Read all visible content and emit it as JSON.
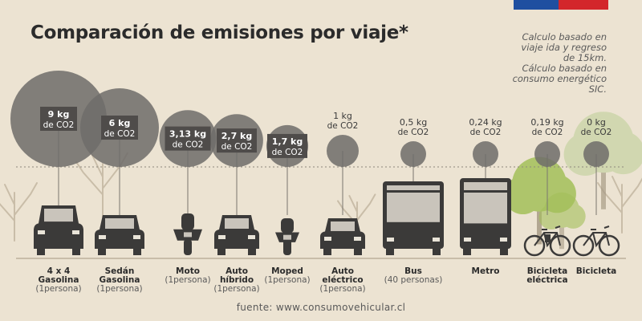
{
  "header": {
    "title": "Comparación de emisiones por viaje*",
    "note_lines": [
      "Calculo basado en",
      "viaje ida y regreso",
      "de 15km.",
      "Cálculo basado en",
      "consumo energético",
      "SIC."
    ]
  },
  "footer": {
    "source": "fuente: www.consumovehicular.cl"
  },
  "colors": {
    "background": "#ece3d2",
    "bubble": "#6f6c6a",
    "label_box": "#4f4c4a",
    "text": "#2b2b2b",
    "tree_green": "#a4c05a",
    "flag_blue": "#1f4fa0",
    "flag_red": "#d3262b"
  },
  "chart_data": {
    "type": "bubble",
    "unit": "kg de CO2",
    "categories": [
      {
        "name": "4 x 4\nGasolina",
        "sub": "(1persona)",
        "value": 9,
        "label": "9 kg",
        "unit_label": "de CO2",
        "icon": "suv-icon",
        "boxed": true
      },
      {
        "name": "Sedán\nGasolina",
        "sub": "(1persona)",
        "value": 6,
        "label": "6 kg",
        "unit_label": "de CO2",
        "icon": "sedan-icon",
        "boxed": true
      },
      {
        "name": "Moto",
        "sub": "(1persona)",
        "value": 3.13,
        "label": "3,13 kg",
        "unit_label": "de CO2",
        "icon": "motorcycle-icon",
        "boxed": true
      },
      {
        "name": "Auto\nhíbrido",
        "sub": "(1persona)",
        "value": 2.7,
        "label": "2,7 kg",
        "unit_label": "de CO2",
        "icon": "hybrid-car-icon",
        "boxed": true
      },
      {
        "name": "Moped",
        "sub": "(1persona)",
        "value": 1.7,
        "label": "1,7 kg",
        "unit_label": "de CO2",
        "icon": "moped-icon",
        "boxed": true
      },
      {
        "name": "Auto\neléctrico",
        "sub": "(1persona)",
        "value": 1,
        "label": "1 kg",
        "unit_label": "de CO2",
        "icon": "electric-car-icon",
        "boxed": false
      },
      {
        "name": "Bus",
        "sub": "(40 personas)",
        "value": 0.5,
        "label": "0,5 kg",
        "unit_label": "de CO2",
        "icon": "bus-icon",
        "boxed": false
      },
      {
        "name": "Metro",
        "sub": "",
        "value": 0.24,
        "label": "0,24 kg",
        "unit_label": "de CO2",
        "icon": "metro-icon",
        "boxed": false
      },
      {
        "name": "Bicicleta\neléctrica",
        "sub": "",
        "value": 0.19,
        "label": "0,19 kg",
        "unit_label": "de CO2",
        "icon": "electric-bicycle-icon",
        "boxed": false
      },
      {
        "name": "Bicicleta",
        "sub": "",
        "value": 0,
        "label": "0 kg",
        "unit_label": "de CO2",
        "icon": "bicycle-icon",
        "boxed": false
      }
    ]
  }
}
